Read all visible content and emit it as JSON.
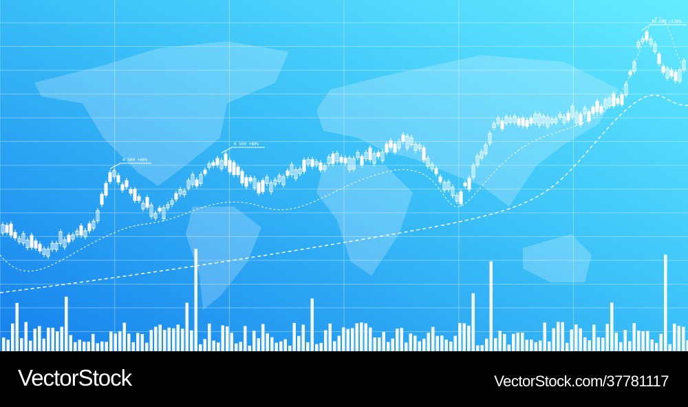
{
  "annotations": [
    "4 500 +60%",
    "6 500 +80%",
    "10 000 +120%"
  ],
  "watermark": {
    "brand": "VectorStock",
    "id": "VectorStock.com/37781117"
  }
}
